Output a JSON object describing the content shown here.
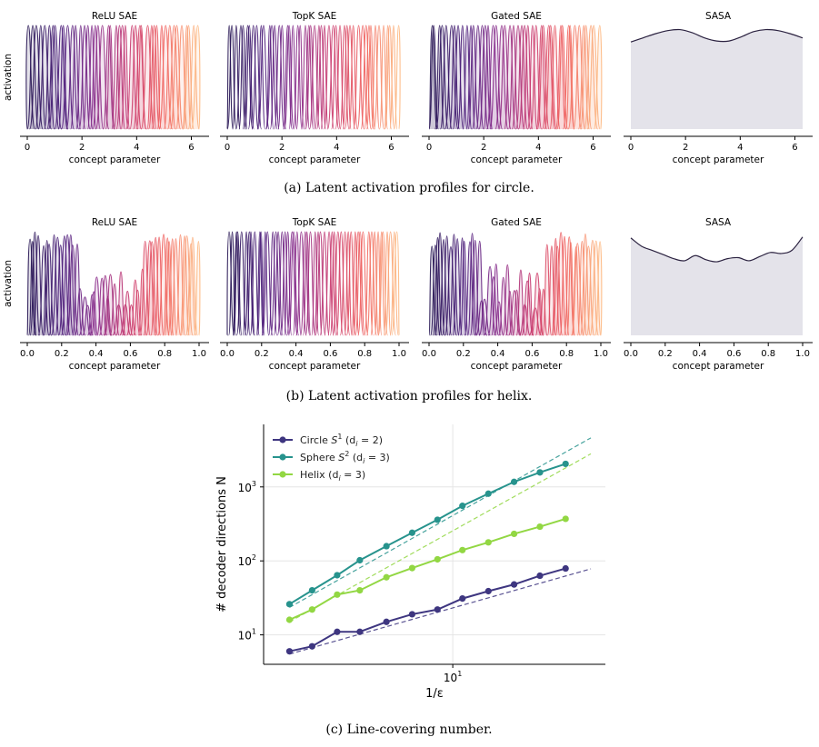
{
  "captions": {
    "a": "(a) Latent activation profiles for circle.",
    "b": "(b) Latent activation profiles for helix.",
    "c": "(c) Line-covering number."
  },
  "chart_data": [
    {
      "type": "line",
      "panel": "a",
      "shared_ylabel": "activation",
      "xlabel": "concept parameter",
      "xlim": [
        0,
        6.283
      ],
      "xticks": [
        0,
        2,
        4,
        6
      ],
      "colormap": "magma",
      "subplots": [
        {
          "title": "ReLU SAE",
          "style": "bumps",
          "count": 44,
          "width": 0.19,
          "seed": 3,
          "fill": true
        },
        {
          "title": "TopK SAE",
          "style": "bumps",
          "count": 48,
          "width": 0.16,
          "seed": 7,
          "fill": false
        },
        {
          "title": "Gated SAE",
          "style": "bumps",
          "count": 44,
          "width": 0.19,
          "seed": 11,
          "fill": true
        },
        {
          "title": "SASA",
          "style": "smooth",
          "y": [
            0.84,
            0.88,
            0.92,
            0.95,
            0.96,
            0.93,
            0.88,
            0.85,
            0.85,
            0.89,
            0.94,
            0.96,
            0.95,
            0.92,
            0.88
          ],
          "fill_color": "#e4e3ea",
          "line_color": "#2b2240"
        }
      ]
    },
    {
      "type": "line",
      "panel": "b",
      "shared_ylabel": "activation",
      "xlabel": "concept parameter",
      "xlim": [
        0,
        1
      ],
      "xticks": [
        0.0,
        0.2,
        0.4,
        0.6,
        0.8,
        1.0
      ],
      "colormap": "magma",
      "subplots": [
        {
          "title": "ReLU SAE",
          "style": "bumps-mixed",
          "count": 50,
          "width": 0.028,
          "seed": 5,
          "fill": true
        },
        {
          "title": "TopK SAE",
          "style": "bumps",
          "count": 52,
          "width": 0.024,
          "seed": 13,
          "fill": false
        },
        {
          "title": "Gated SAE",
          "style": "bumps-mixed",
          "count": 50,
          "width": 0.028,
          "seed": 17,
          "fill": true
        },
        {
          "title": "SASA",
          "style": "smooth",
          "y": [
            0.94,
            0.86,
            0.82,
            0.78,
            0.74,
            0.72,
            0.77,
            0.73,
            0.71,
            0.74,
            0.75,
            0.72,
            0.76,
            0.8,
            0.79,
            0.82,
            0.95
          ],
          "fill_color": "#e4e3ea",
          "line_color": "#2b2240"
        }
      ]
    },
    {
      "type": "line",
      "panel": "c",
      "xscale": "log",
      "yscale": "log",
      "xlabel": "1/ε",
      "ylabel": "# decoder directions N",
      "xlim": [
        1.55,
        45
      ],
      "ylim": [
        4,
        7000
      ],
      "xticks": [
        {
          "value": 10,
          "label": "10",
          "exp": "1"
        }
      ],
      "yticks": [
        {
          "value": 10,
          "label": "10",
          "exp": "1"
        },
        {
          "value": 100,
          "label": "10",
          "exp": "2"
        },
        {
          "value": 1000,
          "label": "10",
          "exp": "3"
        }
      ],
      "grid": true,
      "legend": "top-left",
      "x": [
        2,
        2.5,
        3.2,
        4,
        5.2,
        6.7,
        8.6,
        11,
        14.2,
        18.3,
        23.6,
        30.4,
        39
      ],
      "series": [
        {
          "name": "Circle",
          "space": "S",
          "space_sup": "1",
          "dim": "(d",
          "dim_sub": "i",
          "dim_rest": " = 2)",
          "color": "#3e3680",
          "values": [
            6,
            7,
            11,
            11,
            15,
            19,
            22,
            31,
            39,
            48,
            63,
            79,
            null
          ],
          "fit": {
            "x": [
              2,
              39
            ],
            "y": [
              5.5,
              78
            ]
          }
        },
        {
          "name": "Sphere",
          "space": "S",
          "space_sup": "2",
          "dim": "(d",
          "dim_sub": "i",
          "dim_rest": " = 3)",
          "color": "#27938d",
          "values": [
            26,
            40,
            64,
            102,
            158,
            240,
            360,
            555,
            810,
            1170,
            1570,
            2050,
            null
          ],
          "fit": {
            "x": [
              2,
              39
            ],
            "y": [
              23.5,
              4600
            ]
          }
        },
        {
          "name": "Helix",
          "space": "",
          "space_sup": "",
          "dim": "(d",
          "dim_sub": "i",
          "dim_rest": " = 3)",
          "color": "#92d743",
          "values": [
            16,
            22,
            35,
            40,
            60,
            80,
            105,
            140,
            178,
            232,
            290,
            370,
            null
          ],
          "fit": {
            "x": [
              2,
              39
            ],
            "y": [
              15,
              2800
            ]
          }
        }
      ]
    }
  ]
}
